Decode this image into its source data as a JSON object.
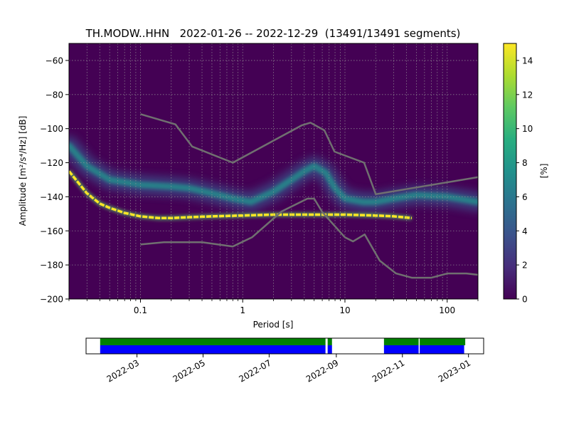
{
  "colors": {
    "viridis_dark": "#440154",
    "bar_green": "#008000",
    "bar_blue": "#0000ff",
    "model_line": "#707070",
    "data_yellow": "#fde725"
  },
  "chart_data": [
    {
      "type": "heatmap",
      "title": "TH.MODW..HHN   2022-01-26 -- 2022-12-29  (13491/13491 segments)",
      "xlabel": "Period [s]",
      "ylabel": "Amplitude [m²/s⁴/Hz] [dB]",
      "x_scale": "log",
      "xlim": [
        0.02,
        200
      ],
      "ylim": [
        -200,
        -50
      ],
      "x_ticks": [
        0.1,
        1,
        10,
        100
      ],
      "x_ticklabels": [
        "0.1",
        "1",
        "10",
        "100"
      ],
      "y_ticks": [
        -200,
        -180,
        -160,
        -140,
        -120,
        -100,
        -80,
        -60
      ],
      "y_ticklabels": [
        "−200",
        "−180",
        "−160",
        "−140",
        "−120",
        "−100",
        "−80",
        "−60"
      ],
      "grid": true,
      "colorbar": {
        "label": "[%]",
        "range": [
          0,
          15
        ],
        "ticks": [
          0,
          2,
          4,
          6,
          8,
          10,
          12,
          14
        ],
        "ticklabels": [
          "0",
          "2",
          "4",
          "6",
          "8",
          "10",
          "12",
          "14"
        ],
        "colormap": "viridis"
      },
      "series": [
        {
          "kind": "high_noise_model",
          "points": [
            [
              0.1,
              -91.5
            ],
            [
              0.22,
              -97.5
            ],
            [
              0.32,
              -110.5
            ],
            [
              0.8,
              -120
            ],
            [
              3.8,
              -98
            ],
            [
              4.6,
              -96.5
            ],
            [
              6.3,
              -101
            ],
            [
              7.9,
              -113.5
            ],
            [
              15.4,
              -120
            ],
            [
              20,
              -138.5
            ],
            [
              200,
              -128.5
            ]
          ]
        },
        {
          "kind": "low_noise_model",
          "points": [
            [
              0.1,
              -168
            ],
            [
              0.17,
              -166.7
            ],
            [
              0.4,
              -166.7
            ],
            [
              0.8,
              -169.2
            ],
            [
              1.24,
              -163.7
            ],
            [
              2.4,
              -148.6
            ],
            [
              4.3,
              -141.1
            ],
            [
              5,
              -141.1
            ],
            [
              6,
              -149
            ],
            [
              10,
              -163.8
            ],
            [
              12,
              -166.2
            ],
            [
              15.6,
              -162.1
            ],
            [
              21.9,
              -177.5
            ],
            [
              31.6,
              -185
            ],
            [
              45,
              -187.5
            ],
            [
              70,
              -187.5
            ],
            [
              101,
              -185
            ],
            [
              154,
              -185
            ],
            [
              200,
              -185.8
            ]
          ]
        },
        {
          "kind": "mode_curve",
          "points": [
            [
              0.02,
              -125
            ],
            [
              0.03,
              -138
            ],
            [
              0.04,
              -144
            ],
            [
              0.05,
              -146.5
            ],
            [
              0.07,
              -149.5
            ],
            [
              0.1,
              -151.5
            ],
            [
              0.15,
              -152.5
            ],
            [
              0.2,
              -152.5
            ],
            [
              0.3,
              -152
            ],
            [
              0.5,
              -151.5
            ],
            [
              1,
              -151
            ],
            [
              2,
              -150.5
            ],
            [
              5,
              -150.5
            ],
            [
              10,
              -150.5
            ],
            [
              20,
              -151
            ],
            [
              30,
              -151.5
            ],
            [
              45,
              -152.5
            ]
          ]
        },
        {
          "kind": "spread_curve",
          "points": [
            [
              0.02,
              -110
            ],
            [
              0.03,
              -122
            ],
            [
              0.05,
              -130
            ],
            [
              0.1,
              -133
            ],
            [
              0.2,
              -134
            ],
            [
              0.3,
              -135
            ],
            [
              0.5,
              -138
            ],
            [
              0.8,
              -141
            ],
            [
              1.2,
              -143
            ],
            [
              2,
              -137
            ],
            [
              3,
              -130
            ],
            [
              4,
              -125
            ],
            [
              5,
              -122
            ],
            [
              6.5,
              -126
            ],
            [
              8,
              -135
            ],
            [
              10,
              -141
            ],
            [
              15,
              -143
            ],
            [
              20,
              -143
            ],
            [
              30,
              -141
            ],
            [
              50,
              -139
            ],
            [
              100,
              -140
            ],
            [
              200,
              -143
            ]
          ]
        }
      ]
    },
    {
      "type": "timeline",
      "x_type": "date",
      "xlim": [
        "2022-01-13",
        "2023-01-15"
      ],
      "x_ticks": [
        "2022-03-01",
        "2022-05-01",
        "2022-07-01",
        "2022-09-01",
        "2022-11-01",
        "2023-01-01"
      ],
      "x_ticklabels": [
        "2022-03",
        "2022-05",
        "2022-07",
        "2022-09",
        "2022-11",
        "2023-01"
      ],
      "series": [
        {
          "name": "",
          "color": "green",
          "ranges": [
            [
              "2022-01-26",
              "2022-08-22"
            ],
            [
              "2022-08-24",
              "2022-08-28"
            ],
            [
              "2022-10-15",
              "2022-11-16"
            ],
            [
              "2022-11-17",
              "2022-12-29"
            ]
          ]
        },
        {
          "name": "",
          "color": "blue",
          "ranges": [
            [
              "2022-01-26",
              "2022-08-22"
            ],
            [
              "2022-08-24",
              "2022-08-28"
            ],
            [
              "2022-10-15",
              "2022-11-16"
            ],
            [
              "2022-11-17",
              "2022-12-28"
            ]
          ]
        }
      ]
    }
  ]
}
